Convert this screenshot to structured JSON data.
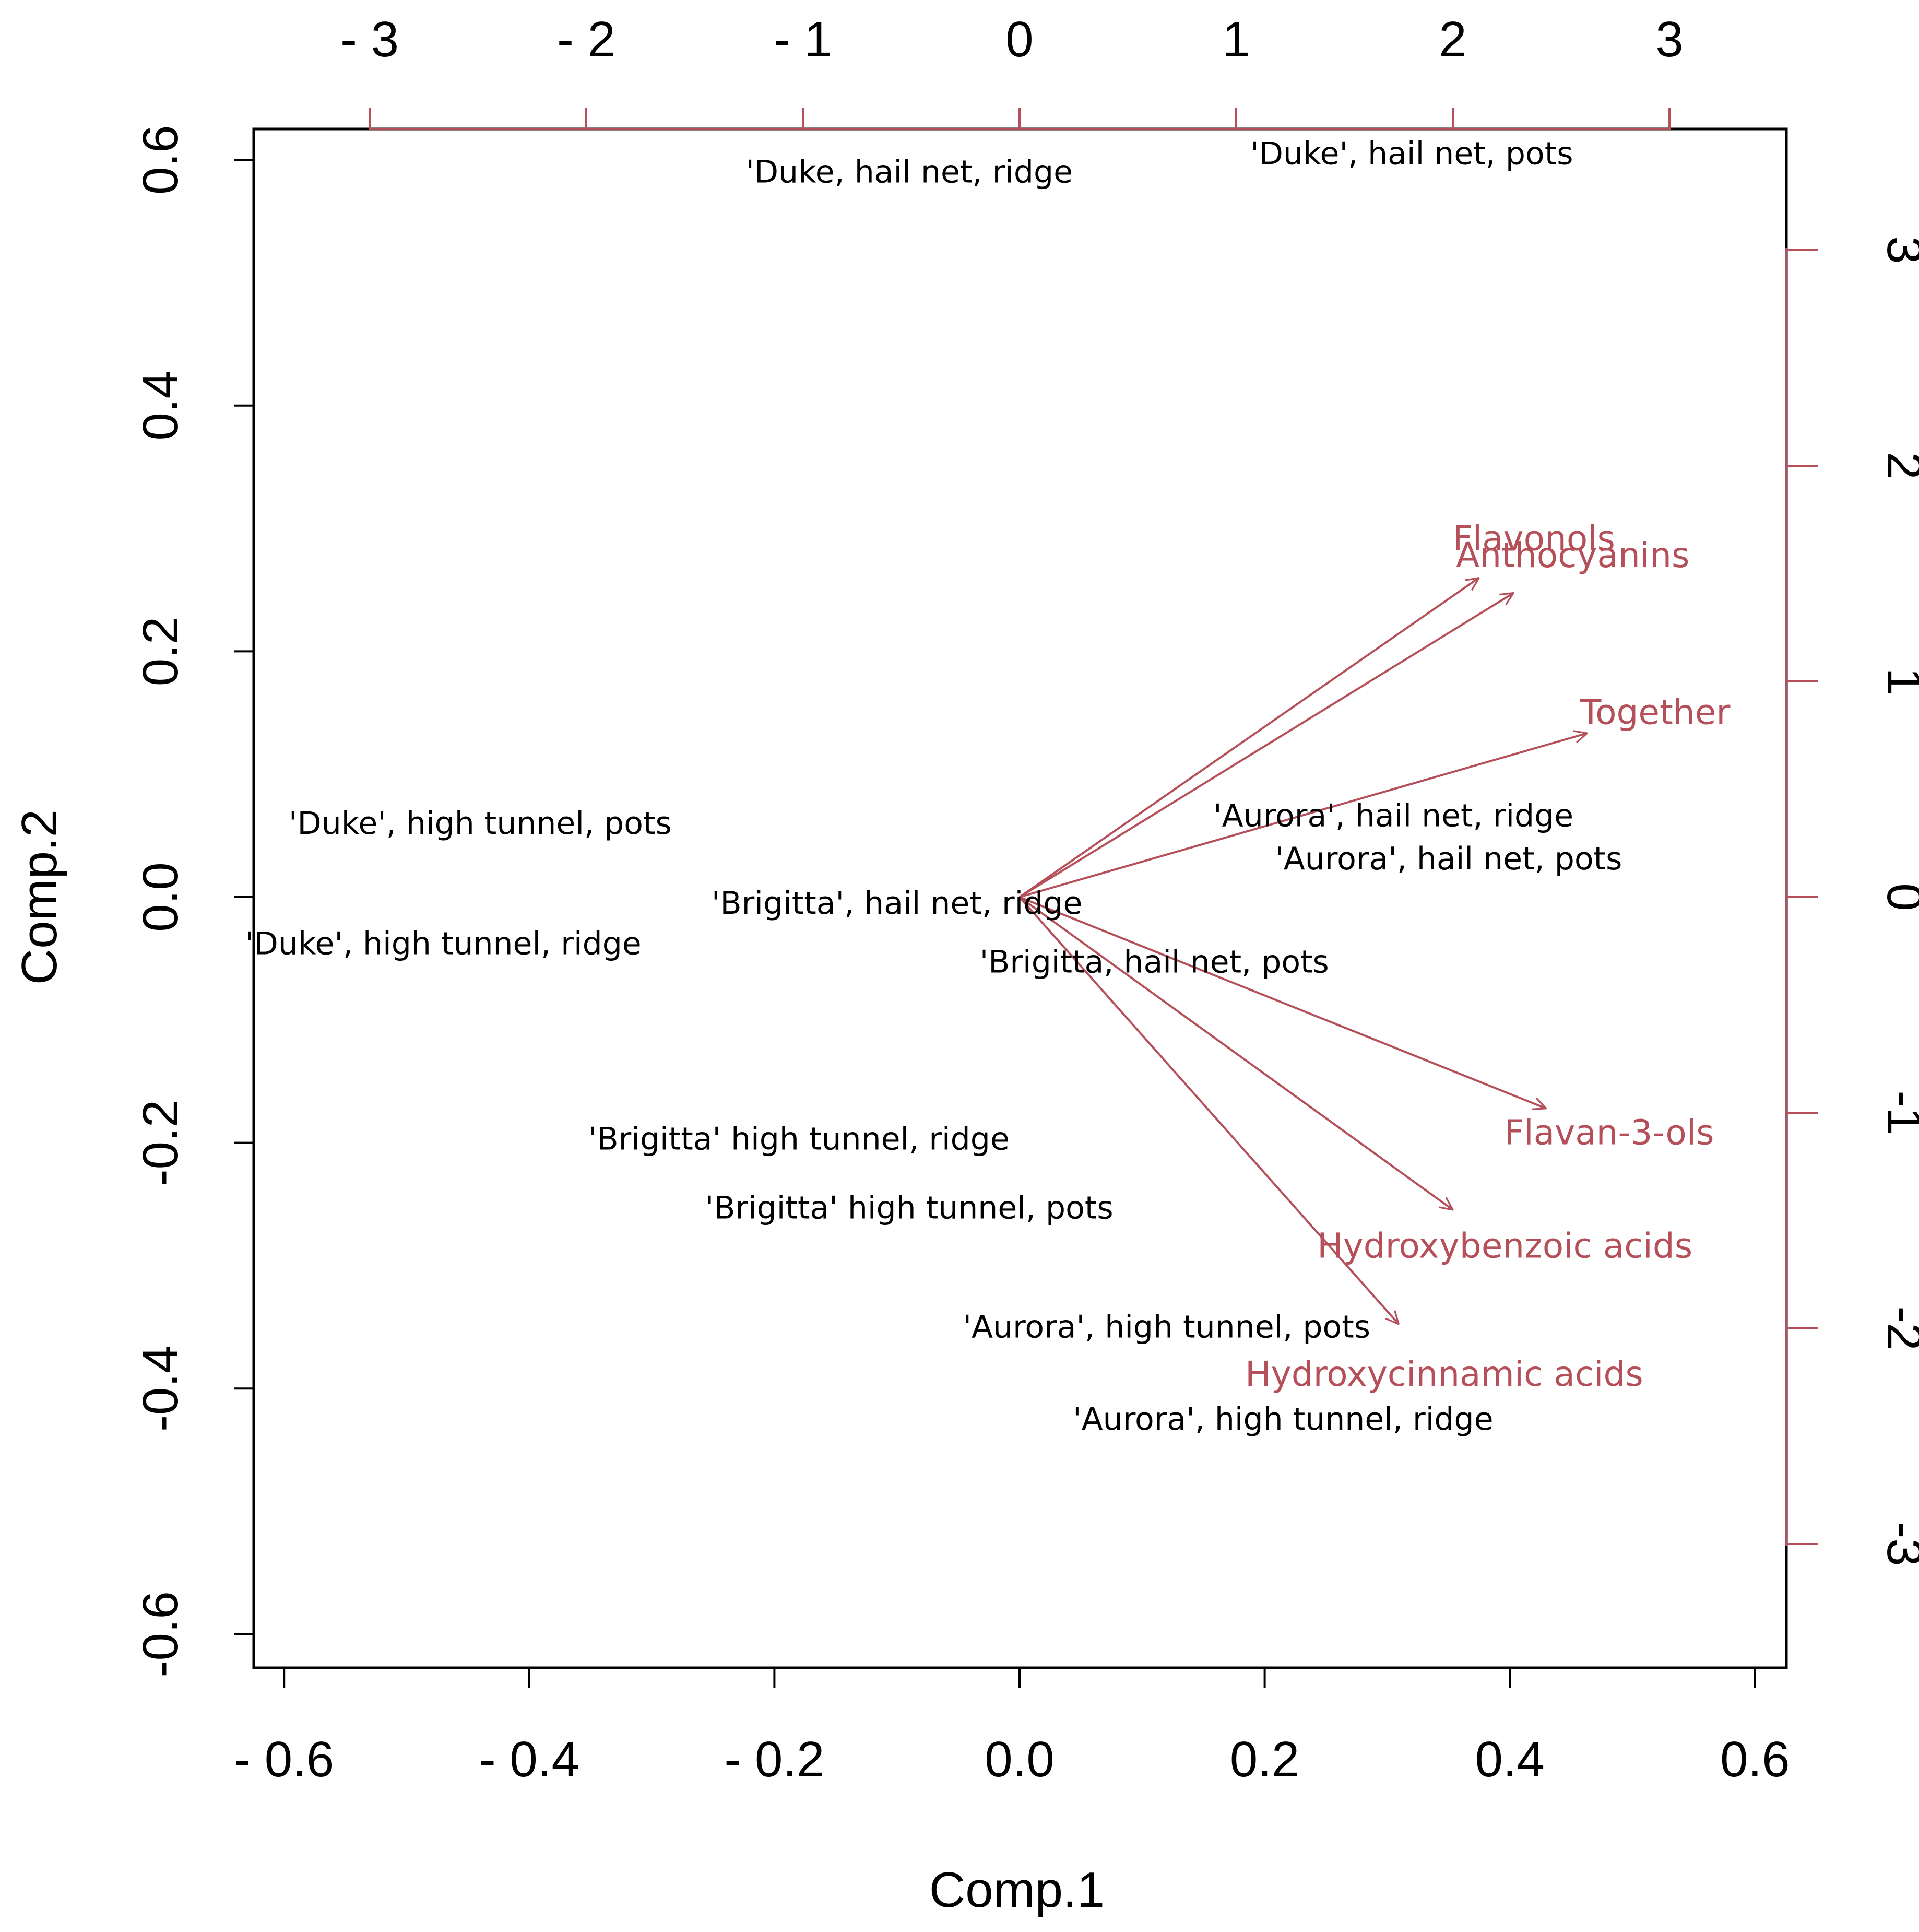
{
  "chart_data": {
    "type": "scatter",
    "subtype": "pca-biplot",
    "title": "",
    "xlabel": "Comp.1",
    "ylabel": "Comp.2",
    "xlim": [
      -0.6,
      0.6
    ],
    "ylim": [
      -0.6,
      0.6
    ],
    "x_ticks": [
      {
        "value": -0.6,
        "label": "- 0.6"
      },
      {
        "value": -0.4,
        "label": "- 0.4"
      },
      {
        "value": -0.2,
        "label": "- 0.2"
      },
      {
        "value": 0.0,
        "label": "0.0"
      },
      {
        "value": 0.2,
        "label": "0.2"
      },
      {
        "value": 0.4,
        "label": "0.4"
      },
      {
        "value": 0.6,
        "label": "0.6"
      }
    ],
    "y_ticks": [
      {
        "value": -0.6,
        "label": "-0.6"
      },
      {
        "value": -0.4,
        "label": "-0.4"
      },
      {
        "value": -0.2,
        "label": "-0.2"
      },
      {
        "value": 0.0,
        "label": "0.0"
      },
      {
        "value": 0.2,
        "label": "0.2"
      },
      {
        "value": 0.4,
        "label": "0.4"
      },
      {
        "value": 0.6,
        "label": "0.6"
      }
    ],
    "loading_x_ticks": [
      {
        "value": -3,
        "label": "- 3"
      },
      {
        "value": -2,
        "label": "- 2"
      },
      {
        "value": -1,
        "label": "- 1"
      },
      {
        "value": 0,
        "label": "0"
      },
      {
        "value": 1,
        "label": "1"
      },
      {
        "value": 2,
        "label": "2"
      },
      {
        "value": 3,
        "label": "3"
      }
    ],
    "loading_y_ticks": [
      {
        "value": -3,
        "label": "-3"
      },
      {
        "value": -2,
        "label": "-2"
      },
      {
        "value": -1,
        "label": "-1"
      },
      {
        "value": 0,
        "label": "0"
      },
      {
        "value": 1,
        "label": "1"
      },
      {
        "value": 2,
        "label": "2"
      },
      {
        "value": 3,
        "label": "3"
      }
    ],
    "observations": [
      {
        "label": "'Duke, hail net, ridge",
        "x": -0.09,
        "y": 0.59
      },
      {
        "label": "'Duke', hail net, pots",
        "x": 0.32,
        "y": 0.605
      },
      {
        "label": "'Duke', high tunnel, pots",
        "x": -0.44,
        "y": 0.06
      },
      {
        "label": "'Duke', high tunnel, ridge",
        "x": -0.47,
        "y": -0.038
      },
      {
        "label": "'Brigitta', hail net, ridge",
        "x": -0.1,
        "y": -0.005
      },
      {
        "label": "'Brigitta, hail net, pots",
        "x": 0.11,
        "y": -0.053
      },
      {
        "label": "'Aurora', hail net, ridge",
        "x": 0.305,
        "y": 0.066
      },
      {
        "label": "'Aurora', hail net, pots",
        "x": 0.35,
        "y": 0.031
      },
      {
        "label": "'Brigitta' high tunnel, ridge",
        "x": -0.18,
        "y": -0.197
      },
      {
        "label": "'Brigitta' high tunnel, pots",
        "x": -0.09,
        "y": -0.253
      },
      {
        "label": "'Aurora', high tunnel, pots",
        "x": 0.12,
        "y": -0.35
      },
      {
        "label": "'Aurora', high tunnel, ridge",
        "x": 0.215,
        "y": -0.425
      }
    ],
    "loadings": [
      {
        "label": "Flavonols",
        "x": 2.12,
        "y": 1.48
      },
      {
        "label": "Anthocyanins",
        "x": 2.28,
        "y": 1.41
      },
      {
        "label": "Together",
        "x": 2.62,
        "y": 0.76
      },
      {
        "label": "Flavan-3-ols",
        "x": 2.43,
        "y": -0.98
      },
      {
        "label": "Hydroxybenzoic acids",
        "x": 2.0,
        "y": -1.45
      },
      {
        "label": "Hydroxycinnamic acids",
        "x": 1.75,
        "y": -1.98
      }
    ],
    "colors": {
      "observations": "#000000",
      "loadings": "#b5505a",
      "frame": "#000000"
    }
  }
}
